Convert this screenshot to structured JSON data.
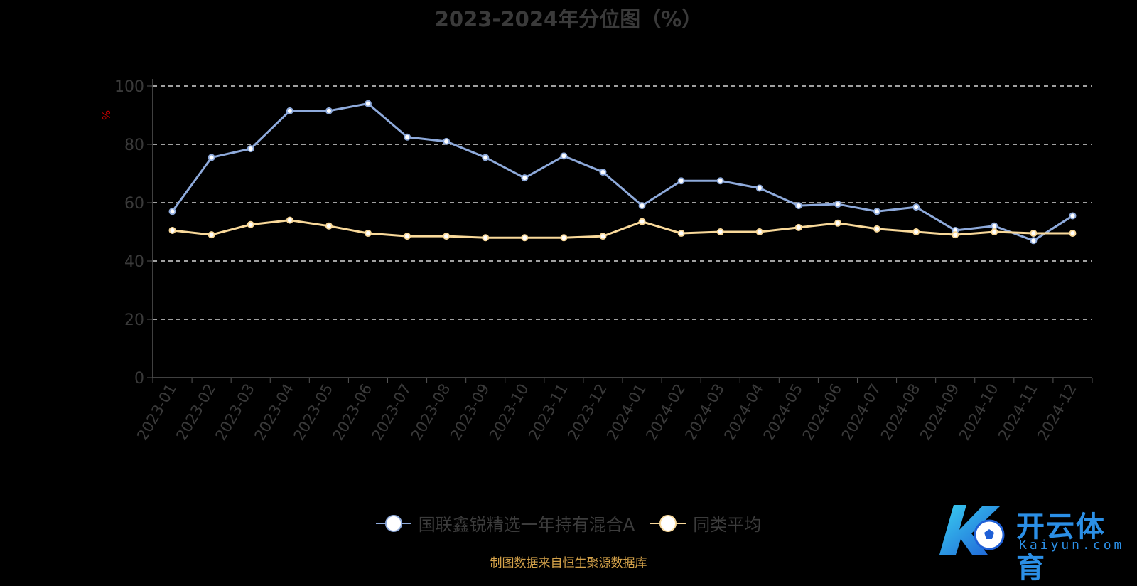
{
  "chart_data": {
    "type": "line",
    "title": "2023-2024年分位图（%）",
    "ylabel": "%",
    "ylim": [
      0,
      100
    ],
    "yticks": [
      "0",
      "20",
      "40",
      "60",
      "80",
      "100"
    ],
    "grid": true,
    "legend_position": "bottom",
    "categories": [
      "2023-01",
      "2023-02",
      "2023-03",
      "2023-04",
      "2023-05",
      "2023-06",
      "2023-07",
      "2023-08",
      "2023-09",
      "2023-10",
      "2023-11",
      "2023-12",
      "2024-01",
      "2024-02",
      "2024-03",
      "2024-04",
      "2024-05",
      "2024-06",
      "2024-07",
      "2024-08",
      "2024-09",
      "2024-10",
      "2024-11",
      "2024-12"
    ],
    "series": [
      {
        "name": "国联鑫锐精选一年持有混合A",
        "color": "#8eaadb",
        "values": [
          57,
          75.5,
          78.5,
          91.5,
          91.5,
          94,
          82.5,
          81,
          75.5,
          68.5,
          76,
          70.5,
          59,
          67.5,
          67.5,
          65,
          59,
          59.5,
          57,
          58.5,
          50.5,
          52,
          47,
          55.5
        ]
      },
      {
        "name": "同类平均",
        "color": "#f9d99a",
        "values": [
          50.5,
          49,
          52.5,
          54,
          52,
          49.5,
          48.5,
          48.5,
          48,
          48,
          48,
          48.5,
          53.5,
          49.5,
          50,
          50,
          51.5,
          53,
          51,
          50,
          49,
          50,
          49.5,
          49.5
        ]
      }
    ]
  },
  "source_note": "制图数据来自恒生聚源数据库",
  "watermark": {
    "brand": "开云体育",
    "domain": "Kaiyun.com"
  }
}
